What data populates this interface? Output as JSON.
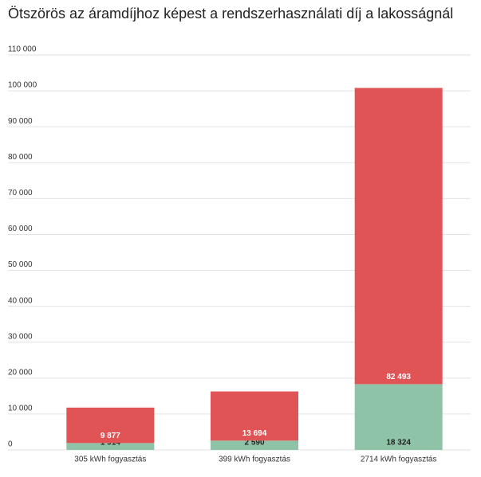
{
  "chart_data": {
    "type": "stacked_bar",
    "title": "Ötszörös az áramdíjhoz képest a rendszerhasználati díj a lakosságnál",
    "categories": [
      "305 kWh fogyasztás",
      "399 kWh fogyasztás",
      "2714 kWh fogyasztás"
    ],
    "series": [
      {
        "color": "#8fc3a7",
        "values": [
          1914,
          2590,
          18324
        ],
        "value_labels": [
          "1 914",
          "2 590",
          "18 324"
        ],
        "label_color": "#222222"
      },
      {
        "color": "#e05455",
        "values": [
          9877,
          13694,
          82493
        ],
        "value_labels": [
          "9 877",
          "13 694",
          "82 493"
        ],
        "label_color": "#ffffff"
      }
    ],
    "ylim": [
      0,
      110000
    ],
    "yticks": [
      0,
      {
        "value": 10000,
        "label": "10 000"
      },
      {
        "value": 20000,
        "label": "20 000"
      },
      {
        "value": 30000,
        "label": "30 000"
      },
      {
        "value": 40000,
        "label": "40 000"
      },
      {
        "value": 50000,
        "label": "50 000"
      },
      {
        "value": 60000,
        "label": "60 000"
      },
      {
        "value": 70000,
        "label": "70 000"
      },
      {
        "value": 80000,
        "label": "80 000"
      },
      {
        "value": 90000,
        "label": "90 000"
      },
      {
        "value": 100000,
        "label": "100 000"
      },
      {
        "value": 110000,
        "label": "110 000"
      }
    ],
    "grid": true
  }
}
